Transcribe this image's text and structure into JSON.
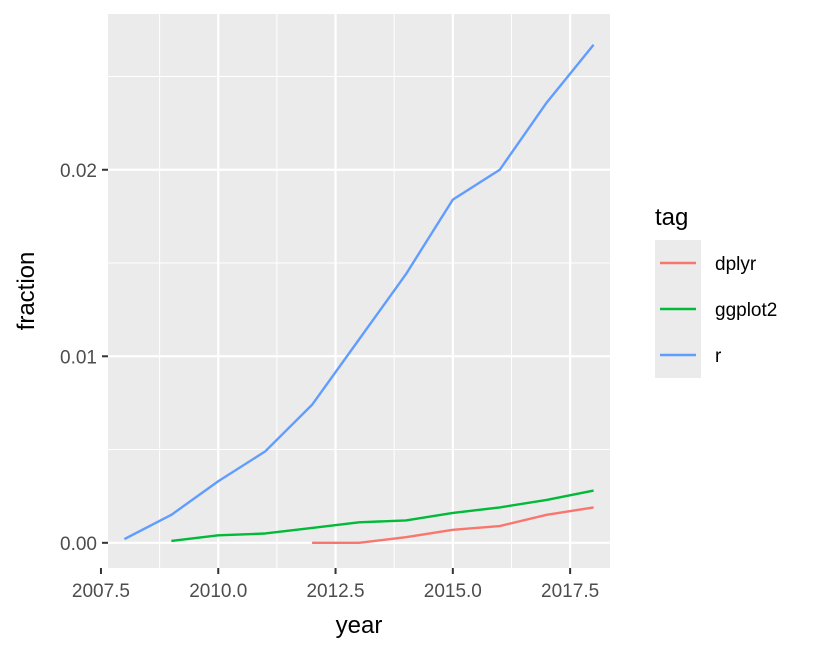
{
  "chart_data": {
    "type": "line",
    "title": "",
    "xlabel": "year",
    "ylabel": "fraction",
    "xlim": [
      2007.65,
      2018.35
    ],
    "ylim": [
      -0.00135,
      0.02835
    ],
    "x_ticks": [
      2007.5,
      2010.0,
      2012.5,
      2015.0,
      2017.5
    ],
    "x_tick_labels": [
      "2007.5",
      "2010.0",
      "2012.5",
      "2015.0",
      "2017.5"
    ],
    "y_ticks": [
      0.0,
      0.01,
      0.02
    ],
    "y_tick_labels": [
      "0.00",
      "0.01",
      "0.02"
    ],
    "grid": true,
    "legend": {
      "title": "tag",
      "position": "right"
    },
    "series": [
      {
        "name": "dplyr",
        "color": "#F8766D",
        "points": [
          [
            2012,
            0.0
          ],
          [
            2013,
            0.0
          ],
          [
            2014,
            0.0003
          ],
          [
            2015,
            0.0007
          ],
          [
            2016,
            0.0009
          ],
          [
            2017,
            0.0015
          ],
          [
            2018,
            0.0019
          ]
        ]
      },
      {
        "name": "ggplot2",
        "color": "#00BA38",
        "points": [
          [
            2009,
            0.0001
          ],
          [
            2010,
            0.0004
          ],
          [
            2011,
            0.0005
          ],
          [
            2012,
            0.0008
          ],
          [
            2013,
            0.0011
          ],
          [
            2014,
            0.0012
          ],
          [
            2015,
            0.0016
          ],
          [
            2016,
            0.0019
          ],
          [
            2017,
            0.0023
          ],
          [
            2018,
            0.0028
          ]
        ]
      },
      {
        "name": "r",
        "color": "#619CFF",
        "points": [
          [
            2008,
            0.0002
          ],
          [
            2009,
            0.0015
          ],
          [
            2010,
            0.0033
          ],
          [
            2011,
            0.0049
          ],
          [
            2012,
            0.0074
          ],
          [
            2013,
            0.0109
          ],
          [
            2014,
            0.0144
          ],
          [
            2015,
            0.0184
          ],
          [
            2016,
            0.02
          ],
          [
            2017,
            0.0236
          ],
          [
            2018,
            0.0267
          ]
        ]
      }
    ]
  }
}
